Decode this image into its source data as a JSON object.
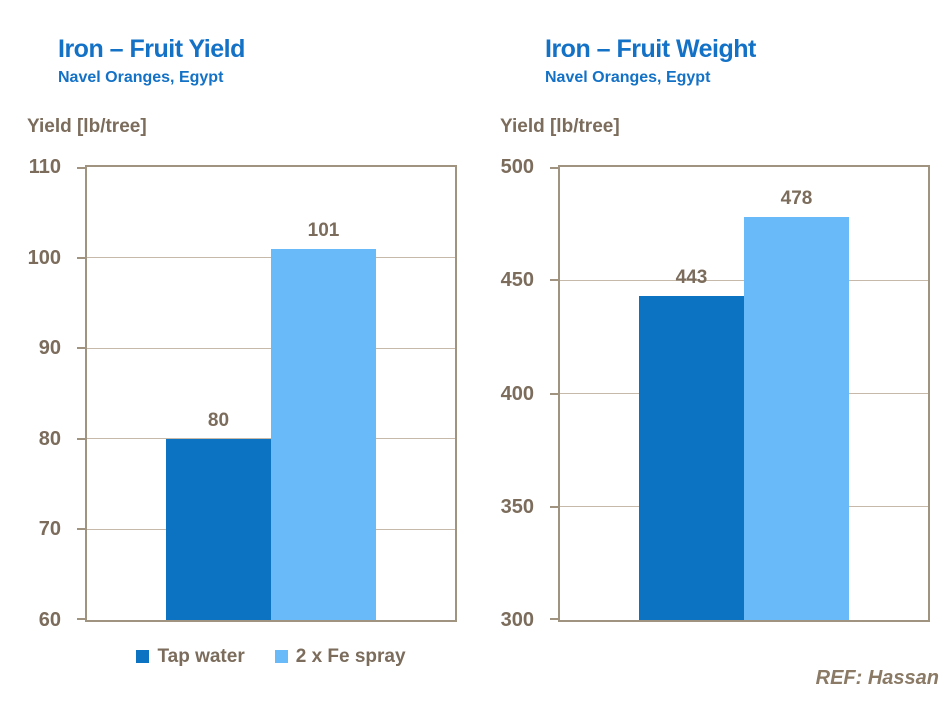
{
  "reference": "REF: Hassan",
  "colors": {
    "title_blue": "#1371c6",
    "series_dark": "#0b73c1",
    "series_light": "#69baf8",
    "axis_text": "#7b6c5c",
    "grid_line": "#c6b9a9",
    "axis_line": "#a0937f"
  },
  "legend": {
    "position": "bottom-left",
    "items": [
      {
        "label": "Tap water",
        "color": "#0b73c1"
      },
      {
        "label": "2 x Fe spray",
        "color": "#69baf8"
      }
    ]
  },
  "chart_data": [
    {
      "type": "bar",
      "title": "Iron – Fruit Yield",
      "subtitle": "Navel Oranges, Egypt",
      "ylabel": "Yield [lb/tree]",
      "xlabel": "",
      "categories": [
        "Tap water",
        "2 x Fe spray"
      ],
      "values": [
        80,
        101
      ],
      "ylim": [
        60,
        110
      ],
      "ytick_step": 10,
      "grid": true,
      "legend_position": "bottom"
    },
    {
      "type": "bar",
      "title": "Iron – Fruit Weight",
      "subtitle": "Navel Oranges, Egypt",
      "ylabel": "Yield [lb/tree]",
      "xlabel": "",
      "categories": [
        "Tap water",
        "2 x Fe spray"
      ],
      "values": [
        443,
        478
      ],
      "ylim": [
        300,
        500
      ],
      "ytick_step": 50,
      "grid": true,
      "legend_position": "none"
    }
  ]
}
